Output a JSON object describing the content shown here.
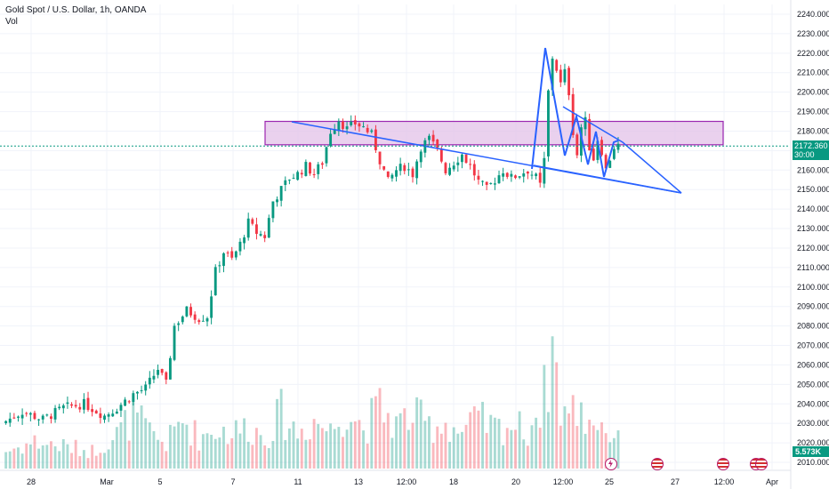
{
  "legend": {
    "symbol_line": "Gold Spot / U.S. Dollar, 1h, OANDA",
    "vol_label": "Vol"
  },
  "price_tag": {
    "price": "2172.360",
    "countdown": "30:00"
  },
  "volume_tag": "5.573K",
  "colors": {
    "up": "#089981",
    "down": "#f23645",
    "drawing": "#2962ff",
    "zone_fill": "#e1bee7",
    "zone_border": "#9c27b0",
    "event_dot": "#b71c6b"
  },
  "icons": [
    "lightning-event-icon",
    "us-flag-event-icon",
    "us-flag-event-icon",
    "us-flag-event-icon"
  ],
  "chart_data": {
    "type": "candlestick",
    "ylim": [
      2010,
      2240
    ],
    "y_ticks": [
      "2240.000",
      "2230.000",
      "2220.000",
      "2210.000",
      "2200.000",
      "2190.000",
      "2180.000",
      "2170.000",
      "2160.000",
      "2150.000",
      "2140.000",
      "2130.000",
      "2120.000",
      "2110.000",
      "2100.000",
      "2090.000",
      "2080.000",
      "2070.000",
      "2060.000",
      "2050.000",
      "2040.000",
      "2030.000",
      "2020.000",
      "2010.000"
    ],
    "x_ticks": [
      "28",
      "Mar",
      "5",
      "7",
      "11",
      "13",
      "12:00",
      "18",
      "20",
      "12:00",
      "25",
      "27",
      "12:00",
      "Apr"
    ],
    "close_path": [
      [
        0,
        2030
      ],
      [
        5,
        2036
      ],
      [
        10,
        2032
      ],
      [
        15,
        2038
      ],
      [
        20,
        2040
      ],
      [
        25,
        2034
      ],
      [
        28,
        2038
      ],
      [
        32,
        2045
      ],
      [
        35,
        2048
      ],
      [
        38,
        2058
      ],
      [
        40,
        2050
      ],
      [
        42,
        2080
      ],
      [
        45,
        2088
      ],
      [
        48,
        2084
      ],
      [
        50,
        2085
      ],
      [
        52,
        2108
      ],
      [
        54,
        2118
      ],
      [
        56,
        2114
      ],
      [
        58,
        2122
      ],
      [
        60,
        2133
      ],
      [
        62,
        2128
      ],
      [
        64,
        2126
      ],
      [
        66,
        2144
      ],
      [
        68,
        2150
      ],
      [
        70,
        2156
      ],
      [
        72,
        2158
      ],
      [
        74,
        2162
      ],
      [
        76,
        2158
      ],
      [
        78,
        2164
      ],
      [
        80,
        2180
      ],
      [
        82,
        2186
      ],
      [
        84,
        2181
      ],
      [
        86,
        2184
      ],
      [
        88,
        2182
      ],
      [
        90,
        2178
      ],
      [
        92,
        2165
      ],
      [
        94,
        2154
      ],
      [
        96,
        2160
      ],
      [
        98,
        2162
      ],
      [
        100,
        2158
      ],
      [
        102,
        2172
      ],
      [
        104,
        2176
      ],
      [
        106,
        2170
      ],
      [
        108,
        2160
      ],
      [
        110,
        2164
      ],
      [
        112,
        2168
      ],
      [
        114,
        2162
      ],
      [
        116,
        2154
      ],
      [
        118,
        2150
      ],
      [
        120,
        2155
      ],
      [
        122,
        2160
      ],
      [
        124,
        2156
      ],
      [
        126,
        2158
      ],
      [
        128,
        2160
      ],
      [
        130,
        2156
      ],
      [
        131,
        2152
      ],
      [
        132,
        2165
      ],
      [
        133,
        2200
      ],
      [
        134,
        2218
      ],
      [
        135,
        2212
      ],
      [
        136,
        2204
      ],
      [
        137,
        2210
      ],
      [
        138,
        2200
      ],
      [
        139,
        2180
      ],
      [
        140,
        2168
      ],
      [
        141,
        2182
      ],
      [
        142,
        2185
      ],
      [
        143,
        2172
      ],
      [
        144,
        2166
      ],
      [
        145,
        2176
      ],
      [
        146,
        2170
      ],
      [
        147,
        2160
      ],
      [
        148,
        2166
      ],
      [
        149,
        2172
      ],
      [
        150,
        2172.36
      ]
    ],
    "volume_profile": [
      [
        0,
        18
      ],
      [
        8,
        30
      ],
      [
        15,
        25
      ],
      [
        22,
        20
      ],
      [
        28,
        38
      ],
      [
        32,
        60
      ],
      [
        36,
        40
      ],
      [
        40,
        28
      ],
      [
        44,
        55
      ],
      [
        48,
        35
      ],
      [
        52,
        45
      ],
      [
        56,
        40
      ],
      [
        60,
        48
      ],
      [
        64,
        35
      ],
      [
        68,
        62
      ],
      [
        72,
        40
      ],
      [
        76,
        55
      ],
      [
        80,
        42
      ],
      [
        84,
        70
      ],
      [
        88,
        45
      ],
      [
        92,
        68
      ],
      [
        96,
        50
      ],
      [
        100,
        60
      ],
      [
        104,
        48
      ],
      [
        108,
        52
      ],
      [
        112,
        40
      ],
      [
        116,
        55
      ],
      [
        120,
        45
      ],
      [
        124,
        50
      ],
      [
        128,
        42
      ],
      [
        132,
        82
      ],
      [
        134,
        140
      ],
      [
        136,
        72
      ],
      [
        138,
        60
      ],
      [
        140,
        68
      ],
      [
        142,
        55
      ],
      [
        144,
        58
      ],
      [
        146,
        50
      ],
      [
        148,
        40
      ],
      [
        150,
        30
      ]
    ],
    "resistance_zone": {
      "from": 2173,
      "to": 2185
    },
    "last_price": 2172.36,
    "last_volume": "5.573K"
  }
}
